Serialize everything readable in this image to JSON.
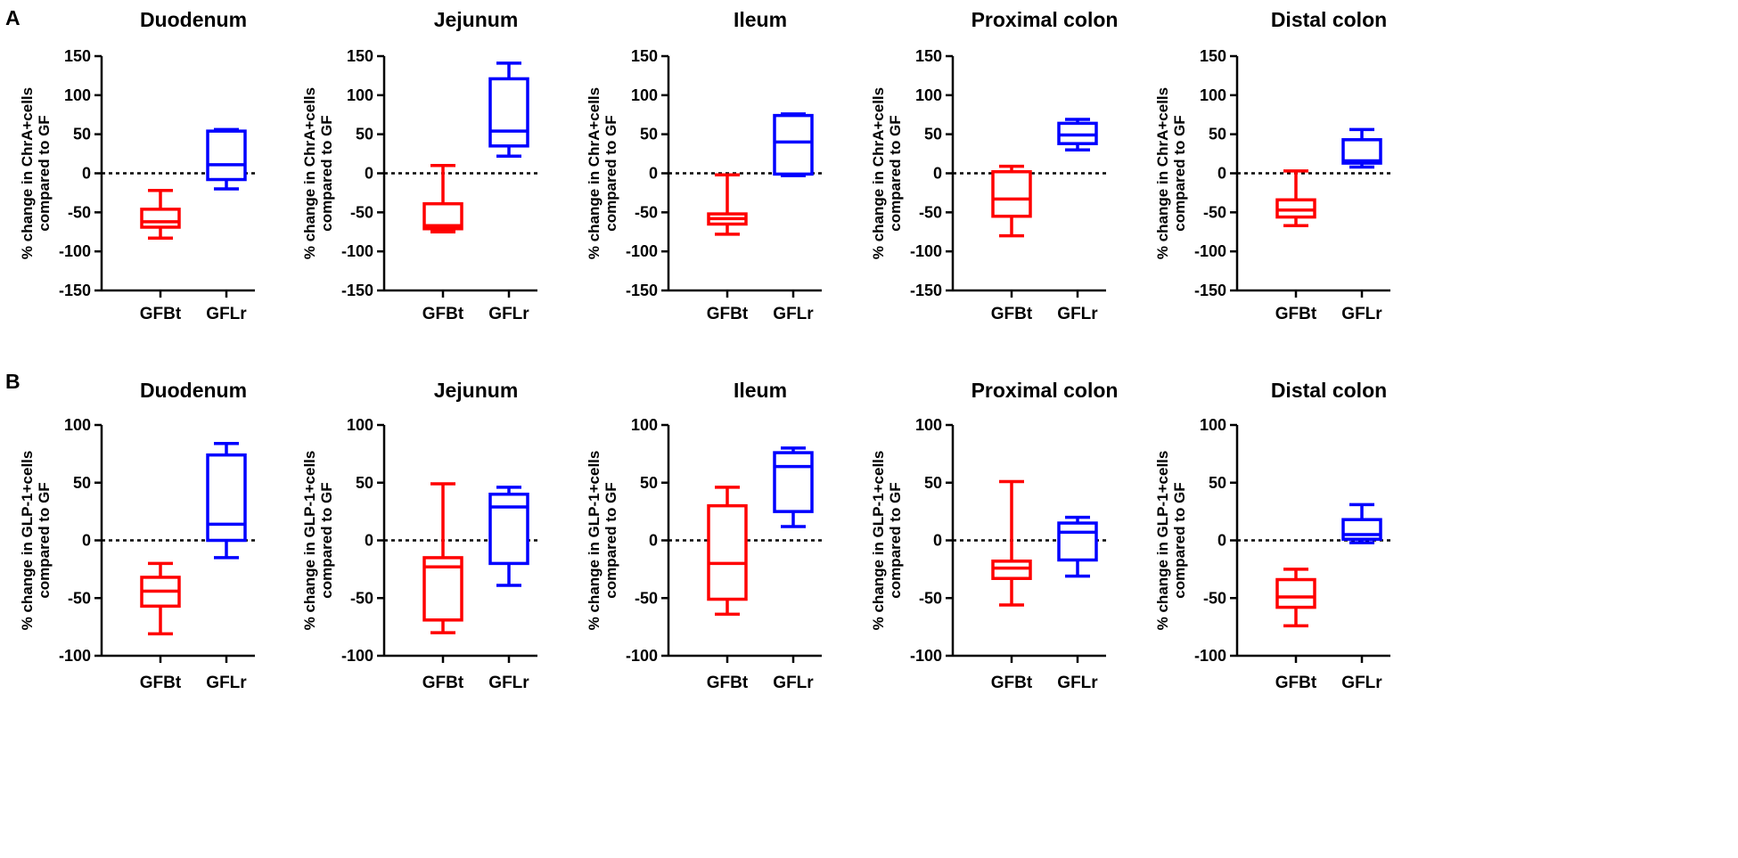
{
  "panels": [
    {
      "label": "A",
      "ylabel_line1": "% change in ChrA+cells",
      "ylabel_line2": "compared to GF"
    },
    {
      "label": "B",
      "ylabel_line1": "% change in GLP-1+cells",
      "ylabel_line2": "compared to GF"
    }
  ],
  "colors": {
    "GFBt": "#ff0000",
    "GFLr": "#0000ff",
    "baseline": "#000000"
  },
  "chart_data": [
    {
      "type": "box",
      "panel": "A",
      "title": "Duodenum",
      "ylim": [
        -150,
        150
      ],
      "yticks": [
        150,
        100,
        50,
        0,
        -50,
        -100,
        -150
      ],
      "categories": [
        "GFBt",
        "GFLr"
      ],
      "series": [
        {
          "name": "GFBt",
          "min": -83,
          "q1": -69,
          "median": -62,
          "q3": -46,
          "max": -22
        },
        {
          "name": "GFLr",
          "min": -20,
          "q1": -8,
          "median": 11,
          "q3": 54,
          "max": 56
        }
      ]
    },
    {
      "type": "box",
      "panel": "A",
      "title": "Jejunum",
      "ylim": [
        -150,
        150
      ],
      "yticks": [
        150,
        100,
        50,
        0,
        -50,
        -100,
        -150
      ],
      "categories": [
        "GFBt",
        "GFLr"
      ],
      "series": [
        {
          "name": "GFBt",
          "min": -75,
          "q1": -71,
          "median": -67,
          "q3": -39,
          "max": 10
        },
        {
          "name": "GFLr",
          "min": 22,
          "q1": 35,
          "median": 54,
          "q3": 121,
          "max": 141
        }
      ]
    },
    {
      "type": "box",
      "panel": "A",
      "title": "Ileum",
      "ylim": [
        -150,
        150
      ],
      "yticks": [
        150,
        100,
        50,
        0,
        -50,
        -100,
        -150
      ],
      "categories": [
        "GFBt",
        "GFLr"
      ],
      "series": [
        {
          "name": "GFBt",
          "min": -78,
          "q1": -65,
          "median": -58,
          "q3": -52,
          "max": -2
        },
        {
          "name": "GFLr",
          "min": -3,
          "q1": -1,
          "median": 40,
          "q3": 74,
          "max": 76
        }
      ]
    },
    {
      "type": "box",
      "panel": "A",
      "title": "Proximal colon",
      "ylim": [
        -150,
        150
      ],
      "yticks": [
        150,
        100,
        50,
        0,
        -50,
        -100,
        -150
      ],
      "categories": [
        "GFBt",
        "GFLr"
      ],
      "series": [
        {
          "name": "GFBt",
          "min": -80,
          "q1": -55,
          "median": -33,
          "q3": 2,
          "max": 9
        },
        {
          "name": "GFLr",
          "min": 30,
          "q1": 38,
          "median": 49,
          "q3": 64,
          "max": 69
        }
      ]
    },
    {
      "type": "box",
      "panel": "A",
      "title": "Distal colon",
      "ylim": [
        -150,
        150
      ],
      "yticks": [
        150,
        100,
        50,
        0,
        -50,
        -100,
        -150
      ],
      "categories": [
        "GFBt",
        "GFLr"
      ],
      "series": [
        {
          "name": "GFBt",
          "min": -67,
          "q1": -56,
          "median": -47,
          "q3": -34,
          "max": 3
        },
        {
          "name": "GFLr",
          "min": 8,
          "q1": 13,
          "median": 16,
          "q3": 43,
          "max": 56
        }
      ]
    },
    {
      "type": "box",
      "panel": "B",
      "title": "Duodenum",
      "ylim": [
        -100,
        100
      ],
      "yticks": [
        100,
        50,
        0,
        -50,
        -100
      ],
      "categories": [
        "GFBt",
        "GFLr"
      ],
      "series": [
        {
          "name": "GFBt",
          "min": -81,
          "q1": -57,
          "median": -44,
          "q3": -32,
          "max": -20
        },
        {
          "name": "GFLr",
          "min": -15,
          "q1": 0,
          "median": 14,
          "q3": 74,
          "max": 84
        }
      ]
    },
    {
      "type": "box",
      "panel": "B",
      "title": "Jejunum",
      "ylim": [
        -100,
        100
      ],
      "yticks": [
        100,
        50,
        0,
        -50,
        -100
      ],
      "categories": [
        "GFBt",
        "GFLr"
      ],
      "series": [
        {
          "name": "GFBt",
          "min": -80,
          "q1": -69,
          "median": -23,
          "q3": -15,
          "max": 49
        },
        {
          "name": "GFLr",
          "min": -39,
          "q1": -20,
          "median": 29,
          "q3": 40,
          "max": 46
        }
      ]
    },
    {
      "type": "box",
      "panel": "B",
      "title": "Ileum",
      "ylim": [
        -100,
        100
      ],
      "yticks": [
        100,
        50,
        0,
        -50,
        -100
      ],
      "categories": [
        "GFBt",
        "GFLr"
      ],
      "series": [
        {
          "name": "GFBt",
          "min": -64,
          "q1": -51,
          "median": -20,
          "q3": 30,
          "max": 46
        },
        {
          "name": "GFLr",
          "min": 12,
          "q1": 25,
          "median": 64,
          "q3": 76,
          "max": 80
        }
      ]
    },
    {
      "type": "box",
      "panel": "B",
      "title": "Proximal colon",
      "ylim": [
        -100,
        100
      ],
      "yticks": [
        100,
        50,
        0,
        -50,
        -100
      ],
      "categories": [
        "GFBt",
        "GFLr"
      ],
      "series": [
        {
          "name": "GFBt",
          "min": -56,
          "q1": -33,
          "median": -24,
          "q3": -18,
          "max": 51
        },
        {
          "name": "GFLr",
          "min": -31,
          "q1": -17,
          "median": 7,
          "q3": 15,
          "max": 20
        }
      ]
    },
    {
      "type": "box",
      "panel": "B",
      "title": "Distal colon",
      "ylim": [
        -100,
        100
      ],
      "yticks": [
        100,
        50,
        0,
        -50,
        -100
      ],
      "categories": [
        "GFBt",
        "GFLr"
      ],
      "series": [
        {
          "name": "GFBt",
          "min": -74,
          "q1": -58,
          "median": -49,
          "q3": -34,
          "max": -25
        },
        {
          "name": "GFLr",
          "min": -2,
          "q1": 1,
          "median": 5,
          "q3": 18,
          "max": 31
        }
      ]
    }
  ]
}
